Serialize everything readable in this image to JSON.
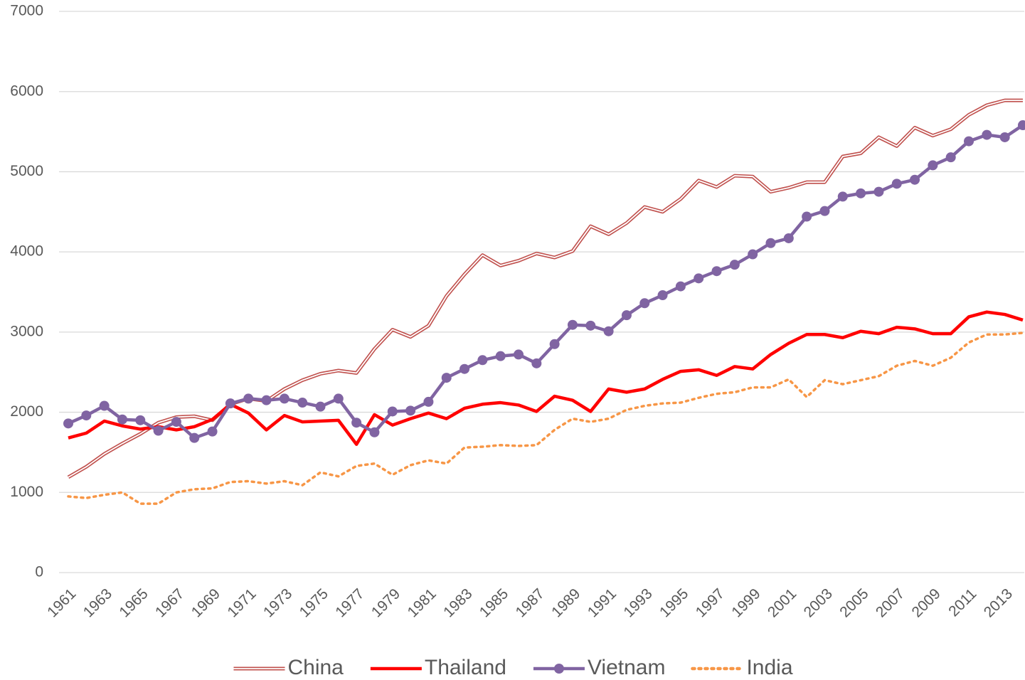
{
  "chart_data": {
    "type": "line",
    "categories": [
      "1961",
      null,
      "1963",
      null,
      "1965",
      null,
      "1967",
      null,
      "1969",
      null,
      "1971",
      null,
      "1973",
      null,
      "1975",
      null,
      "1977",
      null,
      "1979",
      null,
      "1981",
      null,
      "1983",
      null,
      "1985",
      null,
      "1987",
      null,
      "1989",
      null,
      "1991",
      null,
      "1993",
      null,
      "1995",
      null,
      "1997",
      null,
      "1999",
      null,
      "2001",
      null,
      "2003",
      null,
      "2005",
      null,
      "2007",
      null,
      "2009",
      null,
      "2011",
      null,
      "2013",
      null
    ],
    "ylim": [
      0,
      7000
    ],
    "yticks": [
      0,
      1000,
      2000,
      3000,
      4000,
      5000,
      6000,
      7000
    ],
    "grid": true,
    "legend": "bottom",
    "series": [
      {
        "name": "China",
        "color": "#c0504d",
        "line_style": "double",
        "marker": false,
        "values": [
          1190,
          1320,
          1480,
          1610,
          1730,
          1870,
          1940,
          1950,
          1900,
          2100,
          2170,
          2140,
          2290,
          2400,
          2480,
          2520,
          2490,
          2790,
          3030,
          2940,
          3080,
          3450,
          3720,
          3960,
          3830,
          3890,
          3980,
          3930,
          4010,
          4320,
          4220,
          4360,
          4560,
          4500,
          4660,
          4890,
          4810,
          4950,
          4940,
          4750,
          4800,
          4870,
          4870,
          5190,
          5230,
          5430,
          5320,
          5550,
          5450,
          5530,
          5710,
          5830,
          5890,
          5890
        ]
      },
      {
        "name": "Thailand",
        "color": "#ff0000",
        "line_style": "solid",
        "marker": false,
        "values": [
          1680,
          1740,
          1890,
          1830,
          1790,
          1820,
          1780,
          1820,
          1910,
          2100,
          1990,
          1780,
          1960,
          1880,
          1890,
          1900,
          1600,
          1970,
          1840,
          1920,
          1990,
          1920,
          2050,
          2100,
          2120,
          2090,
          2010,
          2200,
          2150,
          2010,
          2290,
          2250,
          2290,
          2410,
          2510,
          2530,
          2460,
          2570,
          2540,
          2720,
          2860,
          2970,
          2970,
          2930,
          3010,
          2980,
          3060,
          3040,
          2980,
          2980,
          3190,
          3250,
          3220,
          3150
        ]
      },
      {
        "name": "Vietnam",
        "color": "#8064a2",
        "line_style": "solid",
        "marker": true,
        "values": [
          1860,
          1960,
          2080,
          1910,
          1900,
          1770,
          1880,
          1680,
          1760,
          2110,
          2170,
          2150,
          2170,
          2120,
          2070,
          2170,
          1870,
          1750,
          2010,
          2020,
          2130,
          2430,
          2540,
          2650,
          2700,
          2720,
          2610,
          2850,
          3090,
          3080,
          3010,
          3210,
          3360,
          3460,
          3570,
          3670,
          3760,
          3840,
          3970,
          4110,
          4170,
          4440,
          4510,
          4690,
          4730,
          4750,
          4850,
          4900,
          5080,
          5180,
          5380,
          5460,
          5430,
          5580
        ]
      },
      {
        "name": "India",
        "color": "#f79646",
        "line_style": "dotted",
        "marker": false,
        "values": [
          950,
          930,
          970,
          1000,
          860,
          860,
          1000,
          1040,
          1050,
          1130,
          1140,
          1110,
          1140,
          1090,
          1250,
          1200,
          1330,
          1360,
          1220,
          1340,
          1400,
          1360,
          1560,
          1570,
          1590,
          1580,
          1590,
          1780,
          1920,
          1880,
          1920,
          2030,
          2080,
          2110,
          2120,
          2180,
          2230,
          2250,
          2310,
          2310,
          2410,
          2190,
          2400,
          2350,
          2400,
          2450,
          2580,
          2640,
          2580,
          2680,
          2870,
          2970,
          2970,
          2990
        ]
      }
    ]
  }
}
